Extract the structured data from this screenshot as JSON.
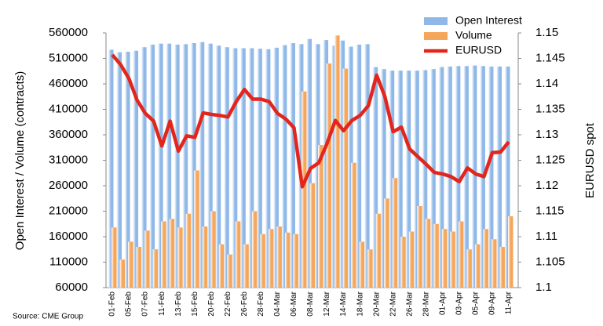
{
  "chart_data": {
    "type": "bar",
    "source": "Source: CME Group",
    "ylabel": "Open Interest / Volume (contracts)",
    "y2label": "EURUSD spot",
    "categories": [
      "01-Feb",
      null,
      "05-Feb",
      null,
      "07-Feb",
      null,
      "11-Feb",
      null,
      "13-Feb",
      null,
      "15-Feb",
      null,
      "20-Feb",
      null,
      "22-Feb",
      null,
      "26-Feb",
      null,
      "28-Feb",
      null,
      "04-Mar",
      null,
      "06-Mar",
      null,
      "08-Mar",
      null,
      "12-Mar",
      null,
      "14-Mar",
      null,
      "18-Mar",
      null,
      "20-Mar",
      null,
      "22-Mar",
      null,
      "26-Mar",
      null,
      "28-Mar",
      null,
      "01-Apr",
      null,
      "03-Apr",
      null,
      "05-Apr",
      null,
      "09-Apr",
      null,
      "11-Apr"
    ],
    "series": [
      {
        "name": "Open Interest",
        "type": "bar",
        "color": "#8fb8e8",
        "axis": "y",
        "values": [
          527000,
          522000,
          523000,
          525000,
          532000,
          537000,
          539000,
          539000,
          537000,
          538000,
          540000,
          542000,
          539000,
          535000,
          532000,
          530000,
          530000,
          530000,
          529000,
          528000,
          531000,
          536000,
          540000,
          538000,
          548000,
          538000,
          546000,
          535000,
          545000,
          533000,
          537000,
          538000,
          493000,
          489000,
          486000,
          486000,
          486000,
          486000,
          487000,
          489000,
          493000,
          494000,
          495000,
          495000,
          496000,
          495000,
          494000,
          494000,
          494000
        ]
      },
      {
        "name": "Volume",
        "type": "bar",
        "color": "#f5a65b",
        "axis": "y",
        "values": [
          178000,
          115000,
          150000,
          140000,
          172000,
          135000,
          190000,
          195000,
          178000,
          205000,
          290000,
          180000,
          210000,
          145000,
          125000,
          190000,
          145000,
          210000,
          165000,
          175000,
          180000,
          168000,
          165000,
          445000,
          265000,
          340000,
          500000,
          555000,
          490000,
          305000,
          150000,
          135000,
          205000,
          235000,
          275000,
          160000,
          170000,
          220000,
          195000,
          185000,
          175000,
          170000,
          190000,
          135000,
          145000,
          175000,
          155000,
          140000,
          200000
        ]
      },
      {
        "name": "EURUSD",
        "type": "line",
        "color": "#e2261c",
        "axis": "y2",
        "values": [
          1.1457,
          1.1438,
          1.1411,
          1.1368,
          1.1342,
          1.1327,
          1.1278,
          1.1327,
          1.1268,
          1.1298,
          1.1295,
          1.1343,
          1.134,
          1.1338,
          1.1335,
          1.1365,
          1.1389,
          1.137,
          1.137,
          1.1365,
          1.1342,
          1.1331,
          1.1314,
          1.1198,
          1.1234,
          1.1245,
          1.1283,
          1.1328,
          1.1308,
          1.1328,
          1.1338,
          1.1357,
          1.1417,
          1.1375,
          1.1306,
          1.1315,
          1.1272,
          1.1257,
          1.1242,
          1.1226,
          1.1223,
          1.1218,
          1.1208,
          1.1235,
          1.1223,
          1.1218,
          1.1265,
          1.1266,
          1.1286
        ]
      }
    ],
    "ylim": [
      60000,
      560000
    ],
    "yticks": [
      60000,
      110000,
      160000,
      210000,
      260000,
      310000,
      360000,
      410000,
      460000,
      510000,
      560000
    ],
    "y2lim": [
      1.1,
      1.15
    ],
    "y2ticks": [
      1.1,
      1.105,
      1.11,
      1.115,
      1.12,
      1.125,
      1.13,
      1.135,
      1.14,
      1.145,
      1.15
    ],
    "legend": "top-right"
  }
}
